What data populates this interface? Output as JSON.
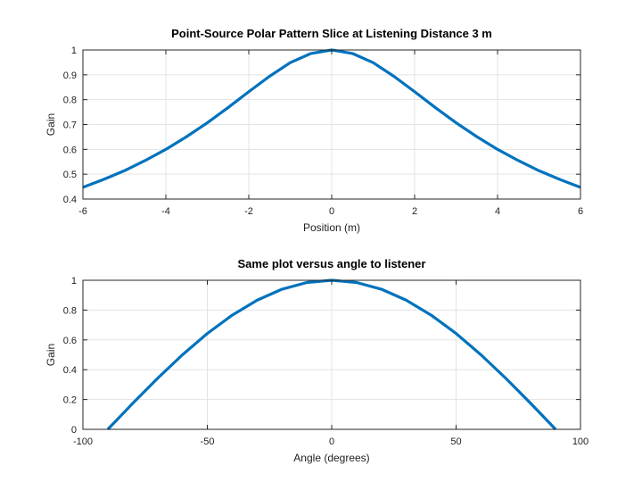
{
  "chart_data": [
    {
      "type": "line",
      "title": "Point-Source Polar Pattern Slice at Listening Distance 3 m",
      "xlabel": "Position (m)",
      "ylabel": "Gain",
      "xlim": [
        -6,
        6
      ],
      "ylim": [
        0.4,
        1
      ],
      "xticks": [
        -6,
        -4,
        -2,
        0,
        2,
        4,
        6
      ],
      "xtick_labels": [
        "-6",
        "-4",
        "-2",
        "0",
        "2",
        "4",
        "6"
      ],
      "yticks": [
        0.4,
        0.5,
        0.6,
        0.7,
        0.8,
        0.9,
        1
      ],
      "ytick_labels": [
        "0.4",
        "0.5",
        "0.6",
        "0.7",
        "0.8",
        "0.9",
        "1"
      ],
      "grid": true,
      "series": [
        {
          "color": "#0072bd",
          "x": [
            -6,
            -5.5,
            -5,
            -4.5,
            -4,
            -3.5,
            -3,
            -2.5,
            -2,
            -1.5,
            -1,
            -0.5,
            0,
            0.5,
            1,
            1.5,
            2,
            2.5,
            3,
            3.5,
            4,
            4.5,
            5,
            5.5,
            6
          ],
          "y": [
            0.447,
            0.479,
            0.514,
            0.555,
            0.6,
            0.651,
            0.707,
            0.768,
            0.832,
            0.894,
            0.949,
            0.986,
            1,
            0.986,
            0.949,
            0.894,
            0.832,
            0.768,
            0.707,
            0.651,
            0.6,
            0.555,
            0.514,
            0.479,
            0.447
          ]
        }
      ]
    },
    {
      "type": "line",
      "title": "Same plot versus angle to listener",
      "xlabel": "Angle (degrees)",
      "ylabel": "Gain",
      "xlim": [
        -100,
        100
      ],
      "ylim": [
        0,
        1
      ],
      "xticks": [
        -100,
        -50,
        0,
        50,
        100
      ],
      "xtick_labels": [
        "-100",
        "-50",
        "0",
        "50",
        "100"
      ],
      "yticks": [
        0,
        0.2,
        0.4,
        0.6,
        0.8,
        1
      ],
      "ytick_labels": [
        "0",
        "0.2",
        "0.4",
        "0.6",
        "0.8",
        "1"
      ],
      "grid": true,
      "series": [
        {
          "color": "#0072bd",
          "x": [
            -90,
            -80,
            -70,
            -60,
            -50,
            -40,
            -30,
            -20,
            -10,
            0,
            10,
            20,
            30,
            40,
            50,
            60,
            70,
            80,
            90
          ],
          "y": [
            0,
            0.174,
            0.342,
            0.5,
            0.643,
            0.766,
            0.866,
            0.94,
            0.985,
            1,
            0.985,
            0.94,
            0.866,
            0.766,
            0.643,
            0.5,
            0.342,
            0.174,
            0
          ]
        }
      ]
    }
  ]
}
